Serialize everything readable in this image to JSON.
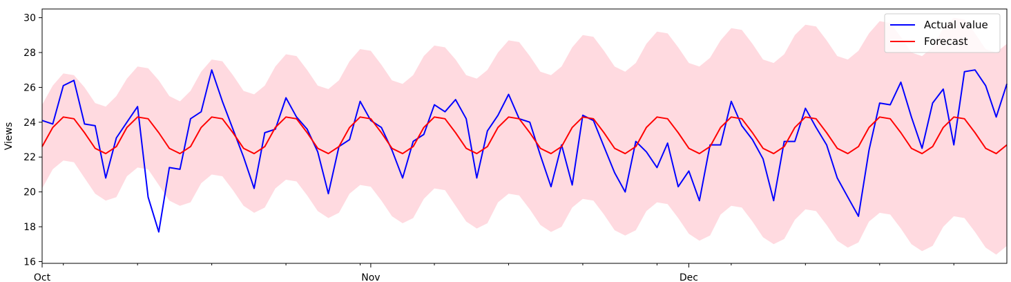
{
  "chart_data": {
    "type": "line",
    "ylabel": "Views",
    "xlabel": "",
    "title": "",
    "ylim": [
      15.9,
      30.5
    ],
    "yticks": [
      16,
      18,
      20,
      22,
      24,
      26,
      28,
      30
    ],
    "xlim": [
      0,
      91
    ],
    "xticks": [
      {
        "x": 0,
        "label": "Oct"
      },
      {
        "x": 31,
        "label": "Nov"
      },
      {
        "x": 61,
        "label": "Dec"
      }
    ],
    "legend": {
      "position": "top-right",
      "entries": [
        "Actual value",
        "Forecast"
      ]
    },
    "colors": {
      "actual": "#0000ff",
      "forecast": "#ff0000",
      "interval": "#ffb6c1"
    },
    "x": [
      0,
      1,
      2,
      3,
      4,
      5,
      6,
      7,
      8,
      9,
      10,
      11,
      12,
      13,
      14,
      15,
      16,
      17,
      18,
      19,
      20,
      21,
      22,
      23,
      24,
      25,
      26,
      27,
      28,
      29,
      30,
      31,
      32,
      33,
      34,
      35,
      36,
      37,
      38,
      39,
      40,
      41,
      42,
      43,
      44,
      45,
      46,
      47,
      48,
      49,
      50,
      51,
      52,
      53,
      54,
      55,
      56,
      57,
      58,
      59,
      60,
      61,
      62,
      63,
      64,
      65,
      66,
      67,
      68,
      69,
      70,
      71,
      72,
      73,
      74,
      75,
      76,
      77,
      78,
      79,
      80,
      81,
      82,
      83,
      84,
      85,
      86,
      87,
      88,
      89,
      90,
      91
    ],
    "series": [
      {
        "name": "Actual value",
        "values": [
          24.1,
          23.9,
          26.1,
          26.4,
          23.9,
          23.8,
          20.8,
          23.1,
          24.0,
          24.9,
          19.7,
          17.7,
          21.4,
          21.3,
          24.2,
          24.6,
          27.0,
          25.2,
          23.6,
          22.0,
          20.2,
          23.4,
          23.6,
          25.4,
          24.3,
          23.6,
          22.3,
          19.9,
          22.6,
          23.0,
          25.2,
          24.1,
          23.7,
          22.4,
          20.8,
          22.9,
          23.3,
          25.0,
          24.6,
          25.3,
          24.2,
          20.8,
          23.5,
          24.4,
          25.6,
          24.2,
          24.0,
          22.1,
          20.3,
          22.7,
          20.4,
          24.4,
          24.1,
          22.6,
          21.1,
          20.0,
          22.9,
          22.3,
          21.4,
          22.8,
          20.3,
          21.2,
          19.5,
          22.7,
          22.7,
          25.2,
          23.8,
          23.0,
          21.9,
          19.5,
          22.9,
          22.9,
          24.8,
          23.7,
          22.7,
          20.8,
          19.7,
          18.6,
          22.4,
          25.1,
          25.0,
          26.3,
          24.3,
          22.5,
          25.1,
          25.9,
          22.7,
          26.9,
          27.0,
          26.1,
          24.3,
          26.2
        ]
      },
      {
        "name": "Forecast",
        "values": [
          22.6,
          23.7,
          24.3,
          24.2,
          23.4,
          22.5,
          22.2,
          22.6,
          23.7,
          24.3,
          24.2,
          23.4,
          22.5,
          22.2,
          22.6,
          23.7,
          24.3,
          24.2,
          23.4,
          22.5,
          22.2,
          22.6,
          23.7,
          24.3,
          24.2,
          23.4,
          22.5,
          22.2,
          22.6,
          23.7,
          24.3,
          24.2,
          23.4,
          22.5,
          22.2,
          22.6,
          23.7,
          24.3,
          24.2,
          23.4,
          22.5,
          22.2,
          22.6,
          23.7,
          24.3,
          24.2,
          23.4,
          22.5,
          22.2,
          22.6,
          23.7,
          24.3,
          24.2,
          23.4,
          22.5,
          22.2,
          22.6,
          23.7,
          24.3,
          24.2,
          23.4,
          22.5,
          22.2,
          22.6,
          23.7,
          24.3,
          24.2,
          23.4,
          22.5,
          22.2,
          22.6,
          23.7,
          24.3,
          24.2,
          23.4,
          22.5,
          22.2,
          22.6,
          23.7,
          24.3,
          24.2,
          23.4,
          22.5,
          22.2,
          22.6,
          23.7,
          24.3,
          24.2,
          23.4,
          22.5,
          22.2,
          22.7
        ]
      }
    ],
    "interval": {
      "upper": [
        25.0,
        26.1,
        26.8,
        26.7,
        26.0,
        25.1,
        24.9,
        25.5,
        26.5,
        27.2,
        27.1,
        26.4,
        25.5,
        25.2,
        25.8,
        26.9,
        27.6,
        27.5,
        26.7,
        25.8,
        25.6,
        26.1,
        27.2,
        27.9,
        27.8,
        27.0,
        26.1,
        25.9,
        26.4,
        27.5,
        28.2,
        28.1,
        27.3,
        26.4,
        26.2,
        26.7,
        27.8,
        28.4,
        28.3,
        27.6,
        26.7,
        26.5,
        27.0,
        28.0,
        28.7,
        28.6,
        27.8,
        26.9,
        26.7,
        27.2,
        28.3,
        29.0,
        28.9,
        28.1,
        27.2,
        26.9,
        27.4,
        28.5,
        29.2,
        29.1,
        28.3,
        27.4,
        27.2,
        27.7,
        28.7,
        29.4,
        29.3,
        28.5,
        27.6,
        27.4,
        27.9,
        29.0,
        29.6,
        29.5,
        28.7,
        27.8,
        27.6,
        28.1,
        29.1,
        29.8,
        29.7,
        28.9,
        28.0,
        27.8,
        28.3,
        29.4,
        30.0,
        29.9,
        29.1,
        28.2,
        28.0,
        28.5
      ]
    }
  }
}
